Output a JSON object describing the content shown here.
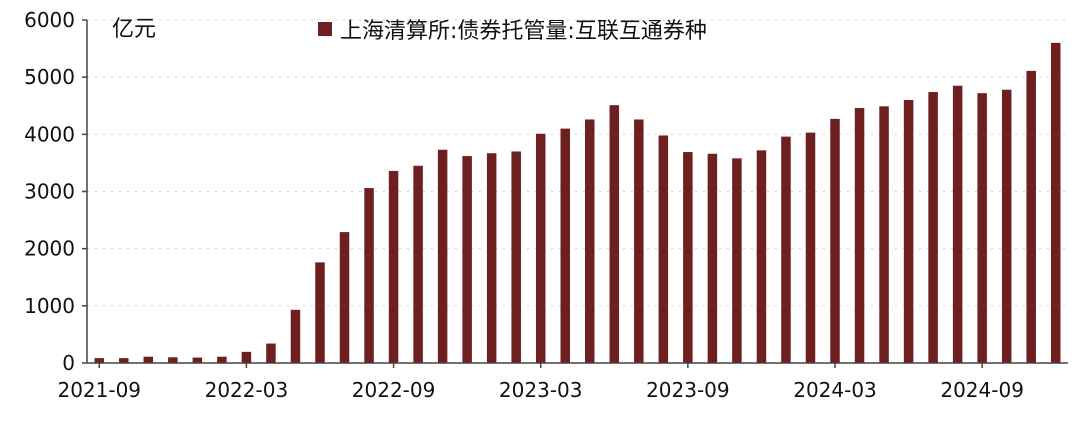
{
  "chart_data": {
    "type": "bar",
    "unit_label": "亿元",
    "legend": [
      "上海清算所:债券托管量:互联互通券种"
    ],
    "legend_position": "top",
    "ylim": [
      0,
      6000
    ],
    "y_ticks": [
      0,
      1000,
      2000,
      3000,
      4000,
      5000,
      6000
    ],
    "x_tick_labels": [
      "2021-09",
      "2022-03",
      "2022-09",
      "2023-03",
      "2023-09",
      "2024-03",
      "2024-09"
    ],
    "x_tick_positions": [
      0,
      6,
      12,
      18,
      24,
      30,
      36
    ],
    "grid": true,
    "bar_color": "#6e1f1f",
    "series": [
      {
        "name": "上海清算所:债券托管量:互联互通券种",
        "values": [
          85,
          85,
          110,
          100,
          95,
          110,
          195,
          340,
          930,
          1760,
          2290,
          3060,
          3360,
          3450,
          3730,
          3620,
          3670,
          3700,
          4010,
          4100,
          4260,
          4510,
          4260,
          3980,
          3690,
          3660,
          3580,
          3720,
          3960,
          4030,
          4270,
          4460,
          4490,
          4600,
          4740,
          4850,
          4720,
          4780,
          5110,
          5600
        ]
      }
    ]
  }
}
